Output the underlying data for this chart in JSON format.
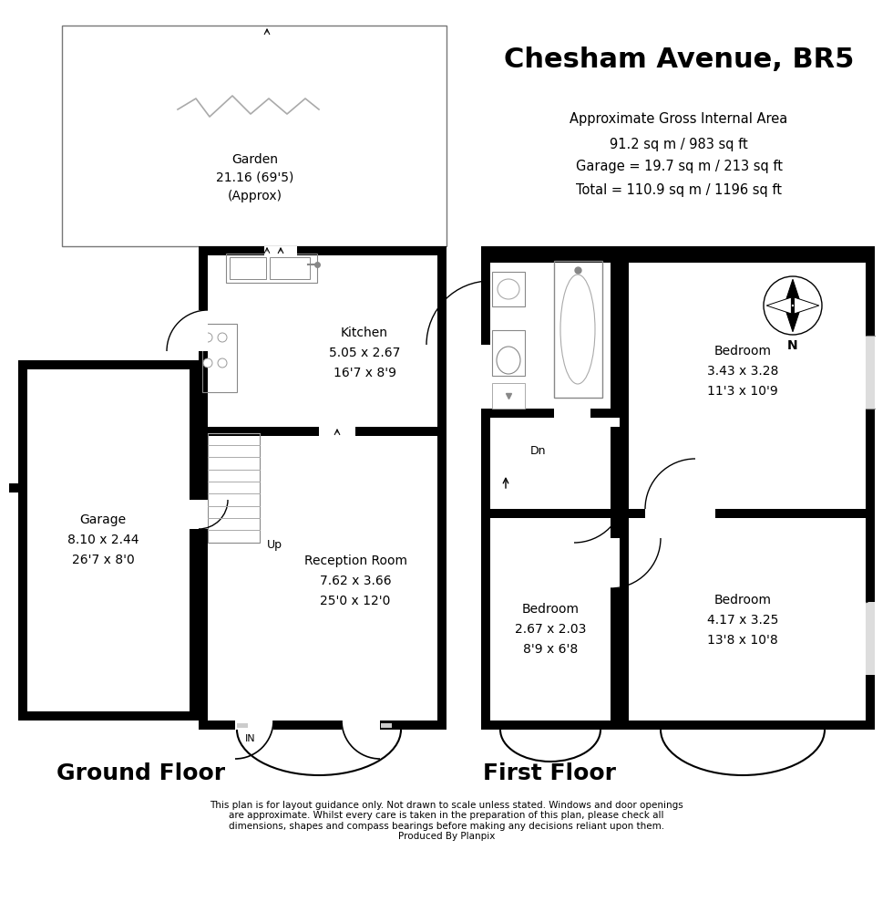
{
  "title": "Chesham Avenue, BR5",
  "area_text1": "Approximate Gross Internal Area",
  "area_text2": "91.2 sq m / 983 sq ft",
  "area_text3": "Garage = 19.7 sq m / 213 sq ft",
  "area_text4": "Total = 110.9 sq m / 1196 sq ft",
  "ground_floor_label": "Ground Floor",
  "first_floor_label": "First Floor",
  "disclaimer": "This plan is for layout guidance only. Not drawn to scale unless stated. Windows and door openings\nare approximate. Whilst every care is taken in the preparation of this plan, please check all\ndimensions, shapes and compass bearings before making any decisions reliant upon them.\nProduced By Planpix",
  "rooms": {
    "garden": {
      "label": "Garden",
      "dims": "21.16 (69'5)",
      "dims2": "(Approx)"
    },
    "kitchen": {
      "label": "Kitchen",
      "dims": "5.05 x 2.67",
      "dims2": "16'7 x 8'9"
    },
    "reception": {
      "label": "Reception Room",
      "dims": "7.62 x 3.66",
      "dims2": "25'0 x 12'0"
    },
    "garage": {
      "label": "Garage",
      "dims": "8.10 x 2.44",
      "dims2": "26'7 x 8'0"
    },
    "bedroom1": {
      "label": "Bedroom",
      "dims": "3.43 x 3.28",
      "dims2": "11'3 x 10'9"
    },
    "bedroom2": {
      "label": "Bedroom",
      "dims": "2.67 x 2.03",
      "dims2": "8'9 x 6'8"
    },
    "bedroom3": {
      "label": "Bedroom",
      "dims": "4.17 x 3.25",
      "dims2": "13'8 x 10'8"
    }
  }
}
